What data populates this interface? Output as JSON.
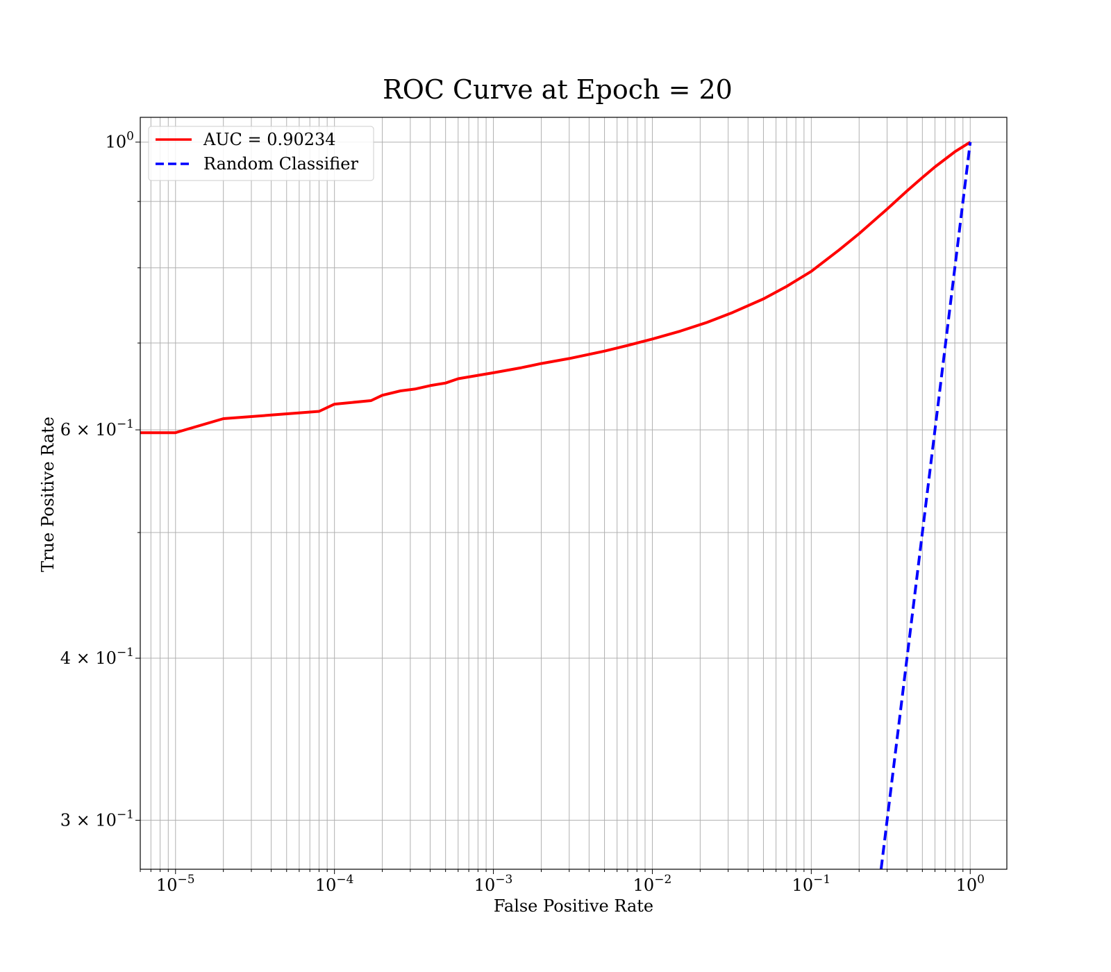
{
  "chart_data": {
    "type": "line",
    "title": "ROC Curve at Epoch = 20",
    "xlabel": "False Positive Rate",
    "ylabel": "True Positive Rate",
    "xscale": "log",
    "yscale": "log",
    "xlim": [
      6e-06,
      1.7
    ],
    "ylim": [
      0.275,
      1.045
    ],
    "grid": true,
    "legend_position": "top-left",
    "x_ticks": [
      {
        "value": 1e-05,
        "base": "10",
        "exp": "−5"
      },
      {
        "value": 0.0001,
        "base": "10",
        "exp": "−4"
      },
      {
        "value": 0.001,
        "base": "10",
        "exp": "−3"
      },
      {
        "value": 0.01,
        "base": "10",
        "exp": "−2"
      },
      {
        "value": 0.1,
        "base": "10",
        "exp": "−1"
      },
      {
        "value": 1,
        "base": "10",
        "exp": "0"
      }
    ],
    "y_ticks": [
      {
        "value": 1.0,
        "base": "10",
        "exp": "0"
      },
      {
        "value": 0.6,
        "base": "6 × 10",
        "exp": "−1"
      },
      {
        "value": 0.4,
        "base": "4 × 10",
        "exp": "−1"
      },
      {
        "value": 0.3,
        "base": "3 × 10",
        "exp": "−1"
      }
    ],
    "y_minor_grid": [
      0.5,
      0.7,
      0.8,
      0.9
    ],
    "series": [
      {
        "name": "AUC = 0.90234",
        "color": "#ff0000",
        "style": "solid",
        "points": [
          [
            6e-06,
            0.597
          ],
          [
            1e-05,
            0.597
          ],
          [
            2e-05,
            0.612
          ],
          [
            4e-05,
            0.616
          ],
          [
            8e-05,
            0.62
          ],
          [
            0.0001,
            0.628
          ],
          [
            0.00017,
            0.632
          ],
          [
            0.0002,
            0.638
          ],
          [
            0.00026,
            0.643
          ],
          [
            0.00032,
            0.645
          ],
          [
            0.0004,
            0.649
          ],
          [
            0.0005,
            0.652
          ],
          [
            0.0006,
            0.657
          ],
          [
            0.0008,
            0.661
          ],
          [
            0.001,
            0.664
          ],
          [
            0.0015,
            0.67
          ],
          [
            0.002,
            0.675
          ],
          [
            0.003,
            0.681
          ],
          [
            0.005,
            0.69
          ],
          [
            0.007,
            0.697
          ],
          [
            0.01,
            0.705
          ],
          [
            0.015,
            0.715
          ],
          [
            0.022,
            0.726
          ],
          [
            0.032,
            0.739
          ],
          [
            0.05,
            0.757
          ],
          [
            0.07,
            0.774
          ],
          [
            0.1,
            0.795
          ],
          [
            0.15,
            0.826
          ],
          [
            0.2,
            0.85
          ],
          [
            0.3,
            0.888
          ],
          [
            0.4,
            0.917
          ],
          [
            0.5,
            0.939
          ],
          [
            0.6,
            0.957
          ],
          [
            0.8,
            0.983
          ],
          [
            1,
            1.0
          ]
        ]
      },
      {
        "name": "Random Classifier",
        "color": "#0000ff",
        "style": "dashed",
        "points": [
          [
            0.275,
            0.275
          ],
          [
            1,
            1
          ]
        ]
      }
    ]
  }
}
